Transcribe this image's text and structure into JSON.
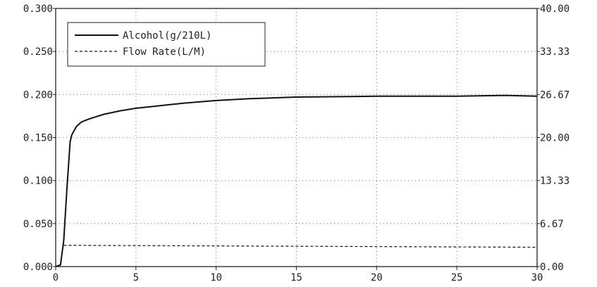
{
  "chart_data": {
    "type": "line",
    "title": "",
    "xlabel": "",
    "ylabel": "",
    "xlim": [
      0,
      30
    ],
    "ylim": [
      0,
      0.3
    ],
    "y2lim": [
      0,
      40
    ],
    "x_ticks": [
      "0",
      "5",
      "10",
      "15",
      "20",
      "25",
      "30"
    ],
    "x_tick_values": [
      0,
      5,
      10,
      15,
      20,
      25,
      30
    ],
    "y_ticks": [
      "0.000",
      "0.050",
      "0.100",
      "0.150",
      "0.200",
      "0.250",
      "0.300"
    ],
    "y_tick_values": [
      0,
      0.05,
      0.1,
      0.15,
      0.2,
      0.25,
      0.3
    ],
    "y2_ticks": [
      "0.00",
      "6.67",
      "13.33",
      "20.00",
      "26.67",
      "33.33",
      "40.00"
    ],
    "y2_tick_values": [
      0,
      6.67,
      13.33,
      20.0,
      26.67,
      33.33,
      40.0
    ],
    "grid": true,
    "legend_position": "top-left",
    "series": [
      {
        "name": "Alcohol(g/210L)",
        "axis": "left",
        "style": "solid",
        "x": [
          0,
          0.3,
          0.5,
          0.7,
          0.9,
          1.0,
          1.3,
          1.6,
          2,
          2.5,
          3,
          4,
          5,
          6,
          7,
          8,
          10,
          12,
          15,
          20,
          25,
          28,
          30
        ],
        "y": [
          0.0,
          0.002,
          0.03,
          0.09,
          0.145,
          0.153,
          0.163,
          0.168,
          0.171,
          0.174,
          0.177,
          0.181,
          0.184,
          0.186,
          0.188,
          0.19,
          0.193,
          0.195,
          0.197,
          0.198,
          0.198,
          0.199,
          0.198
        ]
      },
      {
        "name": "Flow Rate(L/M)",
        "axis": "right",
        "style": "dashed",
        "x": [
          0.5,
          30
        ],
        "y": [
          3.3,
          3.0
        ]
      }
    ]
  },
  "legend": {
    "items": [
      {
        "label": "Alcohol(g/210L)",
        "style": "solid"
      },
      {
        "label": "Flow Rate(L/M)",
        "style": "dashed"
      }
    ]
  }
}
